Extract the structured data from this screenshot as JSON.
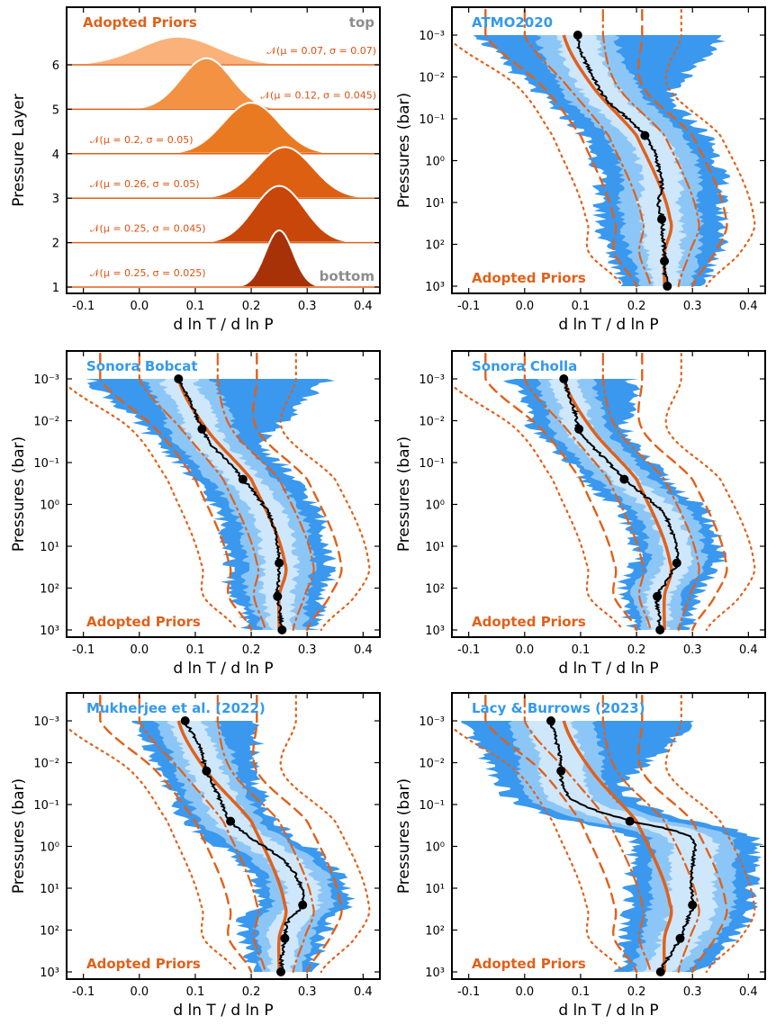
{
  "colors": {
    "prior": "#e0611a",
    "model_label": "#3399ee",
    "band_1": "#3a98ee",
    "band_2": "#8cc6f7",
    "band_3": "#cfe7fb",
    "median": "#000000",
    "layer_fills": [
      "#a83208",
      "#c8460a",
      "#dd5f12",
      "#ea7a22",
      "#f39243",
      "#fbb27a"
    ],
    "top_bottom_label": "#8c8c8c"
  },
  "chart_data": [
    {
      "type": "stacked-density",
      "title": "Adopted Priors",
      "top_label": "top",
      "bottom_label": "bottom",
      "xlabel": "d ln T / d ln P",
      "ylabel": "Pressure Layer",
      "xlim": [
        -0.13,
        0.43
      ],
      "xticks": [
        "-0.1",
        "0.0",
        "0.1",
        "0.2",
        "0.3",
        "0.4"
      ],
      "yticks": [
        "1",
        "2",
        "3",
        "4",
        "5",
        "6"
      ],
      "layers": [
        {
          "layer": 1,
          "mu": 0.25,
          "sigma": 0.025,
          "label": "𝒩(μ = 0.25, σ = 0.025)"
        },
        {
          "layer": 2,
          "mu": 0.25,
          "sigma": 0.045,
          "label": "𝒩(μ = 0.25, σ = 0.045)"
        },
        {
          "layer": 3,
          "mu": 0.26,
          "sigma": 0.05,
          "label": "𝒩(μ = 0.26, σ = 0.05)"
        },
        {
          "layer": 4,
          "mu": 0.2,
          "sigma": 0.05,
          "label": "𝒩(μ = 0.2, σ = 0.05)"
        },
        {
          "layer": 5,
          "mu": 0.12,
          "sigma": 0.045,
          "label": "𝒩(μ = 0.12, σ = 0.045)"
        },
        {
          "layer": 6,
          "mu": 0.07,
          "sigma": 0.07,
          "label": "𝒩(μ = 0.07, σ = 0.07)"
        }
      ]
    },
    {
      "type": "profile",
      "title": "ATMO2020",
      "prior_label": "Adopted Priors",
      "xlabel": "d ln T / d ln P",
      "ylabel": "Pressures (bar)",
      "xlim": [
        -0.13,
        0.43
      ],
      "ylim_log10": [
        -3,
        3
      ],
      "xticks": [
        "-0.1",
        "0.0",
        "0.1",
        "0.2",
        "0.3",
        "0.4"
      ],
      "yticks": [
        "10⁻³",
        "10⁻²",
        "10⁻¹",
        "10⁰",
        "10¹",
        "10²",
        "10³"
      ],
      "median_nodes": [
        {
          "logP": -3.0,
          "x": 0.095
        },
        {
          "logP": -0.6,
          "x": 0.215
        },
        {
          "logP": 1.4,
          "x": 0.245
        },
        {
          "logP": 2.4,
          "x": 0.25
        },
        {
          "logP": 3.0,
          "x": 0.255
        }
      ],
      "median_curve": [
        {
          "logP": -3.0,
          "x": 0.095
        },
        {
          "logP": -2.6,
          "x": 0.1
        },
        {
          "logP": -2.2,
          "x": 0.115
        },
        {
          "logP": -1.8,
          "x": 0.13
        },
        {
          "logP": -1.4,
          "x": 0.15
        },
        {
          "logP": -1.0,
          "x": 0.185
        },
        {
          "logP": -0.6,
          "x": 0.215
        },
        {
          "logP": -0.2,
          "x": 0.232
        },
        {
          "logP": 0.2,
          "x": 0.24
        },
        {
          "logP": 0.6,
          "x": 0.245
        },
        {
          "logP": 1.0,
          "x": 0.24
        },
        {
          "logP": 1.4,
          "x": 0.245
        },
        {
          "logP": 1.8,
          "x": 0.247
        },
        {
          "logP": 2.2,
          "x": 0.25
        },
        {
          "logP": 2.6,
          "x": 0.25
        },
        {
          "logP": 3.0,
          "x": 0.255
        }
      ],
      "band_half_widths": [
        0.035,
        0.07,
        0.11
      ],
      "band_top_flare": 0.16
    },
    {
      "type": "profile",
      "title": "Sonora Bobcat",
      "prior_label": "Adopted Priors",
      "xlabel": "d ln T / d ln P",
      "ylabel": "Pressures (bar)",
      "xlim": [
        -0.13,
        0.43
      ],
      "ylim_log10": [
        -3,
        3
      ],
      "xticks": [
        "-0.1",
        "0.0",
        "0.1",
        "0.2",
        "0.3",
        "0.4"
      ],
      "yticks": [
        "10⁻³",
        "10⁻²",
        "10⁻¹",
        "10⁰",
        "10¹",
        "10²",
        "10³"
      ],
      "median_nodes": [
        {
          "logP": -3.0,
          "x": 0.07
        },
        {
          "logP": -1.8,
          "x": 0.112
        },
        {
          "logP": -0.6,
          "x": 0.185
        },
        {
          "logP": 1.4,
          "x": 0.25
        },
        {
          "logP": 2.2,
          "x": 0.247
        },
        {
          "logP": 3.0,
          "x": 0.255
        }
      ],
      "median_curve": [
        {
          "logP": -3.0,
          "x": 0.07
        },
        {
          "logP": -2.6,
          "x": 0.085
        },
        {
          "logP": -2.2,
          "x": 0.1
        },
        {
          "logP": -1.8,
          "x": 0.112
        },
        {
          "logP": -1.4,
          "x": 0.13
        },
        {
          "logP": -1.0,
          "x": 0.16
        },
        {
          "logP": -0.6,
          "x": 0.185
        },
        {
          "logP": -0.2,
          "x": 0.21
        },
        {
          "logP": 0.2,
          "x": 0.23
        },
        {
          "logP": 0.6,
          "x": 0.242
        },
        {
          "logP": 1.0,
          "x": 0.248
        },
        {
          "logP": 1.4,
          "x": 0.25
        },
        {
          "logP": 1.8,
          "x": 0.248
        },
        {
          "logP": 2.2,
          "x": 0.247
        },
        {
          "logP": 2.6,
          "x": 0.252
        },
        {
          "logP": 3.0,
          "x": 0.255
        }
      ],
      "band_half_widths": [
        0.03,
        0.06,
        0.09
      ],
      "band_top_flare": 0.18
    },
    {
      "type": "profile",
      "title": "Sonora Cholla",
      "prior_label": "Adopted Priors",
      "xlabel": "d ln T / d ln P",
      "ylabel": "Pressures (bar)",
      "xlim": [
        -0.13,
        0.43
      ],
      "ylim_log10": [
        -3,
        3
      ],
      "xticks": [
        "-0.1",
        "0.0",
        "0.1",
        "0.2",
        "0.3",
        "0.4"
      ],
      "yticks": [
        "10⁻³",
        "10⁻²",
        "10⁻¹",
        "10⁰",
        "10¹",
        "10²",
        "10³"
      ],
      "median_nodes": [
        {
          "logP": -3.0,
          "x": 0.07
        },
        {
          "logP": -1.8,
          "x": 0.097
        },
        {
          "logP": -0.6,
          "x": 0.178
        },
        {
          "logP": 1.4,
          "x": 0.272
        },
        {
          "logP": 2.2,
          "x": 0.237
        },
        {
          "logP": 3.0,
          "x": 0.242
        }
      ],
      "median_curve": [
        {
          "logP": -3.0,
          "x": 0.07
        },
        {
          "logP": -2.6,
          "x": 0.08
        },
        {
          "logP": -2.2,
          "x": 0.09
        },
        {
          "logP": -1.8,
          "x": 0.097
        },
        {
          "logP": -1.4,
          "x": 0.12
        },
        {
          "logP": -1.0,
          "x": 0.15
        },
        {
          "logP": -0.6,
          "x": 0.178
        },
        {
          "logP": -0.2,
          "x": 0.215
        },
        {
          "logP": 0.2,
          "x": 0.248
        },
        {
          "logP": 0.6,
          "x": 0.262
        },
        {
          "logP": 1.0,
          "x": 0.27
        },
        {
          "logP": 1.4,
          "x": 0.272
        },
        {
          "logP": 1.8,
          "x": 0.255
        },
        {
          "logP": 2.2,
          "x": 0.237
        },
        {
          "logP": 2.6,
          "x": 0.24
        },
        {
          "logP": 3.0,
          "x": 0.242
        }
      ],
      "band_half_widths": [
        0.025,
        0.05,
        0.075
      ],
      "band_top_flare": 0.05
    },
    {
      "type": "profile",
      "title": "Mukherjee et al. (2022)",
      "prior_label": "Adopted Priors",
      "xlabel": "d ln T / d ln P",
      "ylabel": "Pressures (bar)",
      "xlim": [
        -0.13,
        0.43
      ],
      "ylim_log10": [
        -3,
        3
      ],
      "xticks": [
        "-0.1",
        "0.0",
        "0.1",
        "0.2",
        "0.3",
        "0.4"
      ],
      "yticks": [
        "10⁻³",
        "10⁻²",
        "10⁻¹",
        "10⁰",
        "10¹",
        "10²",
        "10³"
      ],
      "median_nodes": [
        {
          "logP": -3.0,
          "x": 0.082
        },
        {
          "logP": -1.8,
          "x": 0.12
        },
        {
          "logP": -0.6,
          "x": 0.163
        },
        {
          "logP": 1.4,
          "x": 0.292
        },
        {
          "logP": 2.2,
          "x": 0.26
        },
        {
          "logP": 3.0,
          "x": 0.253
        }
      ],
      "median_curve": [
        {
          "logP": -3.0,
          "x": 0.082
        },
        {
          "logP": -2.6,
          "x": 0.1
        },
        {
          "logP": -2.2,
          "x": 0.112
        },
        {
          "logP": -1.8,
          "x": 0.12
        },
        {
          "logP": -1.4,
          "x": 0.135
        },
        {
          "logP": -1.0,
          "x": 0.148
        },
        {
          "logP": -0.6,
          "x": 0.163
        },
        {
          "logP": -0.2,
          "x": 0.2
        },
        {
          "logP": 0.2,
          "x": 0.245
        },
        {
          "logP": 0.6,
          "x": 0.275
        },
        {
          "logP": 1.0,
          "x": 0.29
        },
        {
          "logP": 1.4,
          "x": 0.292
        },
        {
          "logP": 1.8,
          "x": 0.265
        },
        {
          "logP": 2.2,
          "x": 0.26
        },
        {
          "logP": 2.6,
          "x": 0.255
        },
        {
          "logP": 3.0,
          "x": 0.253
        }
      ],
      "band_half_widths": [
        0.03,
        0.055,
        0.08
      ],
      "band_top_flare": 0.04
    },
    {
      "type": "profile",
      "title": "Lacy & Burrows (2023)",
      "prior_label": "Adopted Priors",
      "xlabel": "d ln T / d ln P",
      "ylabel": "Pressures (bar)",
      "xlim": [
        -0.13,
        0.43
      ],
      "ylim_log10": [
        -3,
        3
      ],
      "xticks": [
        "-0.1",
        "0.0",
        "0.1",
        "0.2",
        "0.3",
        "0.4"
      ],
      "yticks": [
        "10⁻³",
        "10⁻²",
        "10⁻¹",
        "10⁰",
        "10¹",
        "10²",
        "10³"
      ],
      "median_nodes": [
        {
          "logP": -3.0,
          "x": 0.047
        },
        {
          "logP": -1.8,
          "x": 0.065
        },
        {
          "logP": -0.6,
          "x": 0.188
        },
        {
          "logP": 1.4,
          "x": 0.3
        },
        {
          "logP": 2.2,
          "x": 0.278
        },
        {
          "logP": 3.0,
          "x": 0.243
        }
      ],
      "median_curve": [
        {
          "logP": -3.0,
          "x": 0.047
        },
        {
          "logP": -2.6,
          "x": 0.055
        },
        {
          "logP": -2.2,
          "x": 0.062
        },
        {
          "logP": -1.8,
          "x": 0.065
        },
        {
          "logP": -1.4,
          "x": 0.07
        },
        {
          "logP": -1.0,
          "x": 0.1
        },
        {
          "logP": -0.6,
          "x": 0.188
        },
        {
          "logP": -0.4,
          "x": 0.26
        },
        {
          "logP": -0.2,
          "x": 0.3
        },
        {
          "logP": 0.3,
          "x": 0.302
        },
        {
          "logP": 0.8,
          "x": 0.298
        },
        {
          "logP": 1.4,
          "x": 0.3
        },
        {
          "logP": 1.8,
          "x": 0.29
        },
        {
          "logP": 2.2,
          "x": 0.278
        },
        {
          "logP": 2.6,
          "x": 0.26
        },
        {
          "logP": 3.0,
          "x": 0.243
        }
      ],
      "band_half_widths": [
        0.04,
        0.075,
        0.11
      ],
      "band_top_flare": 0.14
    }
  ],
  "prior_profile": {
    "mean_nodes": [
      {
        "logP": -3.0,
        "x": 0.07
      },
      {
        "logP": -1.8,
        "x": 0.12
      },
      {
        "logP": -0.6,
        "x": 0.2
      },
      {
        "logP": 1.4,
        "x": 0.26
      },
      {
        "logP": 2.2,
        "x": 0.25
      },
      {
        "logP": 3.0,
        "x": 0.25
      }
    ],
    "sigma_nodes": [
      0.07,
      0.045,
      0.05,
      0.05,
      0.045,
      0.025
    ],
    "dashdot_sigma": 1,
    "dashed_sigma": 2,
    "dotted_sigma": 3
  }
}
